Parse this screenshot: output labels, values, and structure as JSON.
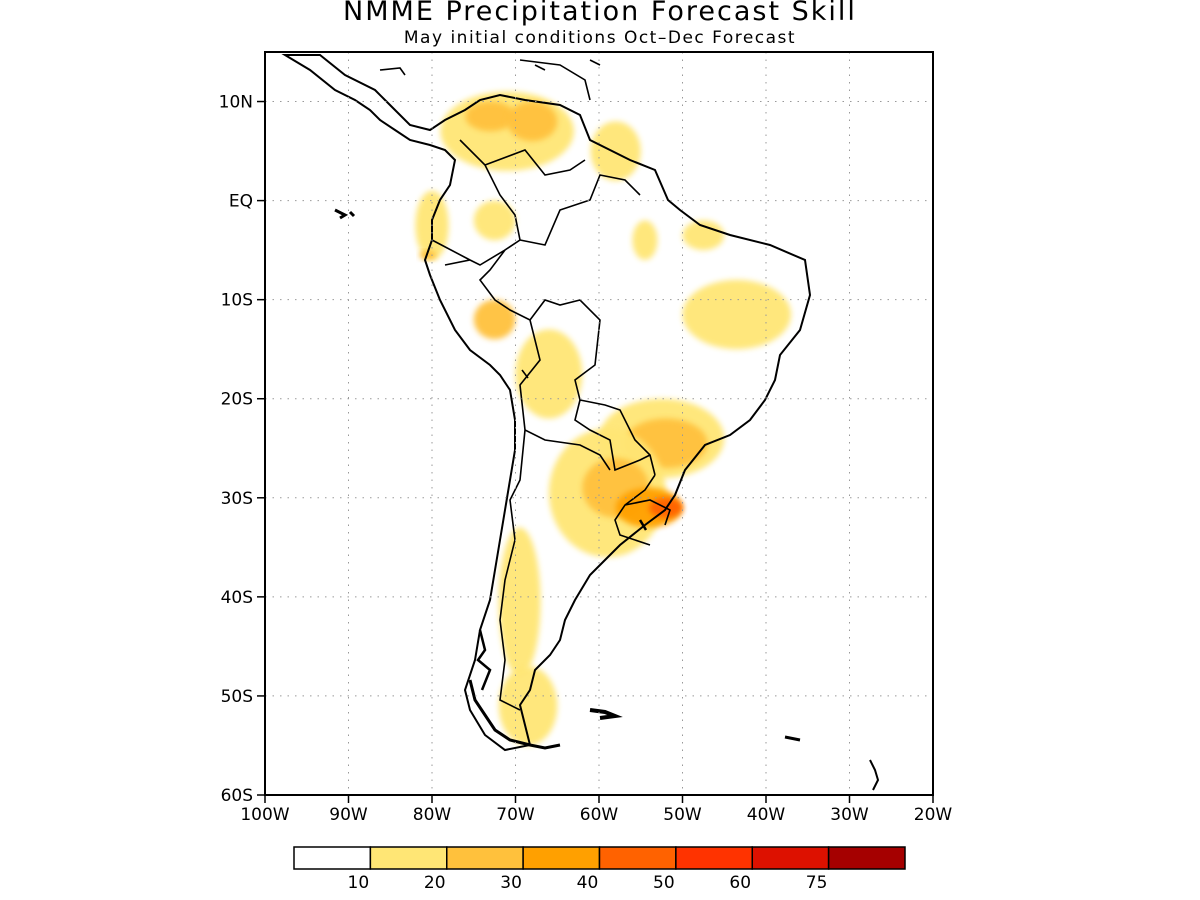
{
  "title": "NMME Precipitation Forecast Skill",
  "subtitle": "May initial conditions  Oct–Dec Forecast",
  "map": {
    "lon_range": [
      -100,
      -20
    ],
    "lat_range": [
      -60,
      15
    ],
    "lat_ticks": [
      {
        "value": 10,
        "label": "10N"
      },
      {
        "value": 0,
        "label": "EQ"
      },
      {
        "value": -10,
        "label": "10S"
      },
      {
        "value": -20,
        "label": "20S"
      },
      {
        "value": -30,
        "label": "30S"
      },
      {
        "value": -40,
        "label": "40S"
      },
      {
        "value": -50,
        "label": "50S"
      },
      {
        "value": -60,
        "label": "60S"
      }
    ],
    "lon_ticks": [
      {
        "value": -100,
        "label": "100W"
      },
      {
        "value": -90,
        "label": "90W"
      },
      {
        "value": -80,
        "label": "80W"
      },
      {
        "value": -70,
        "label": "70W"
      },
      {
        "value": -60,
        "label": "60W"
      },
      {
        "value": -50,
        "label": "50W"
      },
      {
        "value": -40,
        "label": "40W"
      },
      {
        "value": -30,
        "label": "30W"
      },
      {
        "value": -20,
        "label": "20W"
      }
    ],
    "grid": "dotted",
    "legend_placement": "bottom"
  },
  "colorbar": {
    "colors": [
      "#ffffff",
      "#ffe675",
      "#ffc13c",
      "#ffa000",
      "#ff6200",
      "#ff3300",
      "#dd1100",
      "#a50000"
    ],
    "labels": [
      "10",
      "20",
      "30",
      "40",
      "50",
      "60",
      "75"
    ]
  },
  "skill_regions": [
    {
      "name": "north-colombia-venezuela",
      "level": 1,
      "lon": [
        -79,
        -63
      ],
      "lat": [
        3,
        11
      ]
    },
    {
      "name": "north-andes-core",
      "level": 2,
      "lon": [
        -76,
        -70
      ],
      "lat": [
        7,
        10
      ]
    },
    {
      "name": "venezuela-core",
      "level": 2,
      "lon": [
        -71,
        -65
      ],
      "lat": [
        6,
        10
      ]
    },
    {
      "name": "guianas",
      "level": 1,
      "lon": [
        -61,
        -55
      ],
      "lat": [
        2,
        8
      ]
    },
    {
      "name": "ecuador-coast",
      "level": 1,
      "lon": [
        -82,
        -78
      ],
      "lat": [
        -6,
        1
      ]
    },
    {
      "name": "ecuador-core",
      "level": 2,
      "lon": [
        -81.5,
        -79.5
      ],
      "lat": [
        -6,
        -5
      ]
    },
    {
      "name": "upper-amazon",
      "level": 1,
      "lon": [
        -75,
        -70
      ],
      "lat": [
        -4,
        0
      ]
    },
    {
      "name": "amazon-east",
      "level": 1,
      "lon": [
        -56,
        -53
      ],
      "lat": [
        -6,
        -2
      ]
    },
    {
      "name": "para",
      "level": 1,
      "lon": [
        -50,
        -45
      ],
      "lat": [
        -5,
        -2
      ]
    },
    {
      "name": "northeast-brazil",
      "level": 1,
      "lon": [
        -50,
        -37
      ],
      "lat": [
        -15,
        -8
      ]
    },
    {
      "name": "peru-central",
      "level": 2,
      "lon": [
        -75,
        -70
      ],
      "lat": [
        -14,
        -10
      ]
    },
    {
      "name": "bolivia-lowlands",
      "level": 1,
      "lon": [
        -70,
        -62
      ],
      "lat": [
        -22,
        -13
      ]
    },
    {
      "name": "south-brazil-paraguay",
      "level": 1,
      "lon": [
        -60,
        -45
      ],
      "lat": [
        -28,
        -20
      ]
    },
    {
      "name": "parana-core",
      "level": 2,
      "lon": [
        -57,
        -47
      ],
      "lat": [
        -27,
        -22
      ]
    },
    {
      "name": "argentina-north",
      "level": 1,
      "lon": [
        -66,
        -52
      ],
      "lat": [
        -36,
        -23
      ]
    },
    {
      "name": "corrientes",
      "level": 2,
      "lon": [
        -62,
        -54
      ],
      "lat": [
        -32,
        -26
      ]
    },
    {
      "name": "rio-grande-do-sul",
      "level": 3,
      "lon": [
        -58,
        -50
      ],
      "lat": [
        -33,
        -29
      ]
    },
    {
      "name": "rio-grande-core",
      "level": 4,
      "lon": [
        -54,
        -50
      ],
      "lat": [
        -32,
        -30
      ]
    },
    {
      "name": "andes-south",
      "level": 1,
      "lon": [
        -72,
        -67
      ],
      "lat": [
        -48,
        -33
      ]
    },
    {
      "name": "patagonia-south",
      "level": 1,
      "lon": [
        -72,
        -65
      ],
      "lat": [
        -55,
        -47
      ]
    }
  ]
}
